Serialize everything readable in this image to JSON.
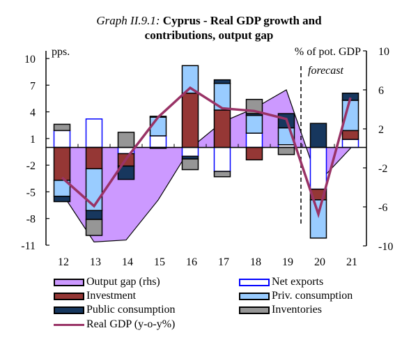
{
  "title": {
    "prefix": "Graph II.9.1:",
    "line1": "Cyprus - Real GDP growth and",
    "line2": "contributions, output gap"
  },
  "colors": {
    "output_gap": "#cc99ff",
    "investment": "#953735",
    "public_consumption": "#17375e",
    "priv_consumption": "#99ccff",
    "inventories": "#969696",
    "net_exports_fill": "#ffffff",
    "net_exports_border": "#0000ff",
    "real_gdp": "#993366"
  },
  "chart_data": {
    "type": "bar",
    "subtype": "stacked bar with line and area (dual axis)",
    "title": "Graph II.9.1: Cyprus - Real GDP growth and contributions, output gap",
    "categories": [
      "12",
      "13",
      "14",
      "15",
      "16",
      "17",
      "18",
      "19",
      "20",
      "21"
    ],
    "left_axis": {
      "label": "pps.",
      "range": [
        -11,
        10
      ],
      "ticks": [
        10,
        7,
        4,
        1,
        -2,
        -5,
        -8,
        -11
      ]
    },
    "right_axis": {
      "label": "% of pot. GDP",
      "range": [
        -10,
        10
      ],
      "ticks": [
        10,
        6,
        2,
        -2,
        -6,
        -10
      ]
    },
    "annotation": {
      "text": "forecast",
      "after_category": "19"
    },
    "series": [
      {
        "name": "Net exports",
        "type": "bar",
        "axis": "left",
        "values": [
          1.9,
          3.2,
          -0.7,
          1.3,
          -1.0,
          -2.7,
          1.6,
          0.3,
          -4.7,
          0.9
        ]
      },
      {
        "name": "Investment",
        "type": "bar",
        "axis": "left",
        "values": [
          -3.7,
          -2.4,
          -1.4,
          0.0,
          6.1,
          4.2,
          -1.4,
          0.0,
          -1.2,
          1.0
        ]
      },
      {
        "name": "Priv. consumption",
        "type": "bar",
        "axis": "left",
        "values": [
          -1.8,
          -4.7,
          0.0,
          2.1,
          3.1,
          3.0,
          2.0,
          1.9,
          -4.3,
          3.4
        ]
      },
      {
        "name": "Public consumption",
        "type": "bar",
        "axis": "left",
        "values": [
          -0.6,
          -1.0,
          -1.5,
          0.1,
          -0.3,
          0.4,
          0.2,
          1.6,
          2.7,
          0.8
        ]
      },
      {
        "name": "Inventories",
        "type": "bar",
        "axis": "left",
        "values": [
          0.7,
          -1.8,
          1.7,
          -0.1,
          -1.2,
          -0.6,
          1.6,
          -0.8,
          0.0,
          0.0
        ]
      },
      {
        "name": "Output gap (rhs)",
        "type": "area",
        "axis": "right",
        "values": [
          -4.6,
          -9.6,
          -9.4,
          -5.3,
          0.0,
          2.7,
          4.1,
          6.0,
          -3.5,
          0.0
        ]
      },
      {
        "name": "Real GDP (y-o-y%)",
        "type": "line",
        "axis": "left",
        "values": [
          -3.4,
          -6.6,
          -1.3,
          3.4,
          6.7,
          4.4,
          4.1,
          3.2,
          -7.5,
          5.6
        ]
      }
    ],
    "stack_order": [
      "Net exports",
      "Investment",
      "Priv. consumption",
      "Public consumption",
      "Inventories"
    ],
    "legend_position": "bottom"
  },
  "legend": {
    "items": [
      {
        "label": "Output gap (rhs)",
        "key": "output_gap"
      },
      {
        "label": "Net exports",
        "key": "net_exports"
      },
      {
        "label": "Investment",
        "key": "investment"
      },
      {
        "label": "Priv. consumption",
        "key": "priv_consumption"
      },
      {
        "label": "Public consumption",
        "key": "public_consumption"
      },
      {
        "label": "Inventories",
        "key": "inventories"
      },
      {
        "label": "Real GDP (y-o-y%)",
        "key": "real_gdp"
      }
    ]
  }
}
